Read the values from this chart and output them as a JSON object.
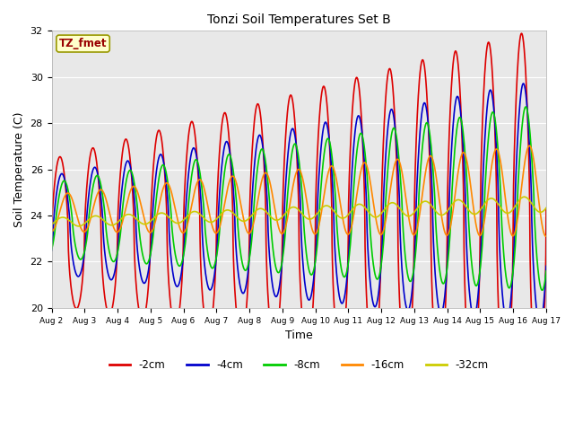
{
  "title": "Tonzi Soil Temperatures Set B",
  "xlabel": "Time",
  "ylabel": "Soil Temperature (C)",
  "ylim": [
    20,
    32
  ],
  "xlim": [
    0,
    15
  ],
  "x_tick_labels": [
    "Aug 2",
    "Aug 3",
    "Aug 4",
    "Aug 5",
    "Aug 6",
    "Aug 7",
    "Aug 8",
    "Aug 9",
    "Aug 10",
    "Aug 11",
    "Aug 12",
    "Aug 13",
    "Aug 14",
    "Aug 15",
    "Aug 16",
    "Aug 17"
  ],
  "annotation_text": "TZ_fmet",
  "annotation_color": "#990000",
  "annotation_bg": "#ffffcc",
  "annotation_edge": "#999900",
  "bg_color": "#e8e8e8",
  "fig_bg": "#ffffff",
  "series": [
    {
      "label": "-2cm",
      "color": "#dd0000",
      "lw": 1.2
    },
    {
      "label": "-4cm",
      "color": "#0000cc",
      "lw": 1.2
    },
    {
      "label": "-8cm",
      "color": "#00cc00",
      "lw": 1.2
    },
    {
      "label": "-16cm",
      "color": "#ff8800",
      "lw": 1.2
    },
    {
      "label": "-32cm",
      "color": "#cccc00",
      "lw": 1.2
    }
  ],
  "grid_color": "#ffffff",
  "legend_ncol": 5
}
